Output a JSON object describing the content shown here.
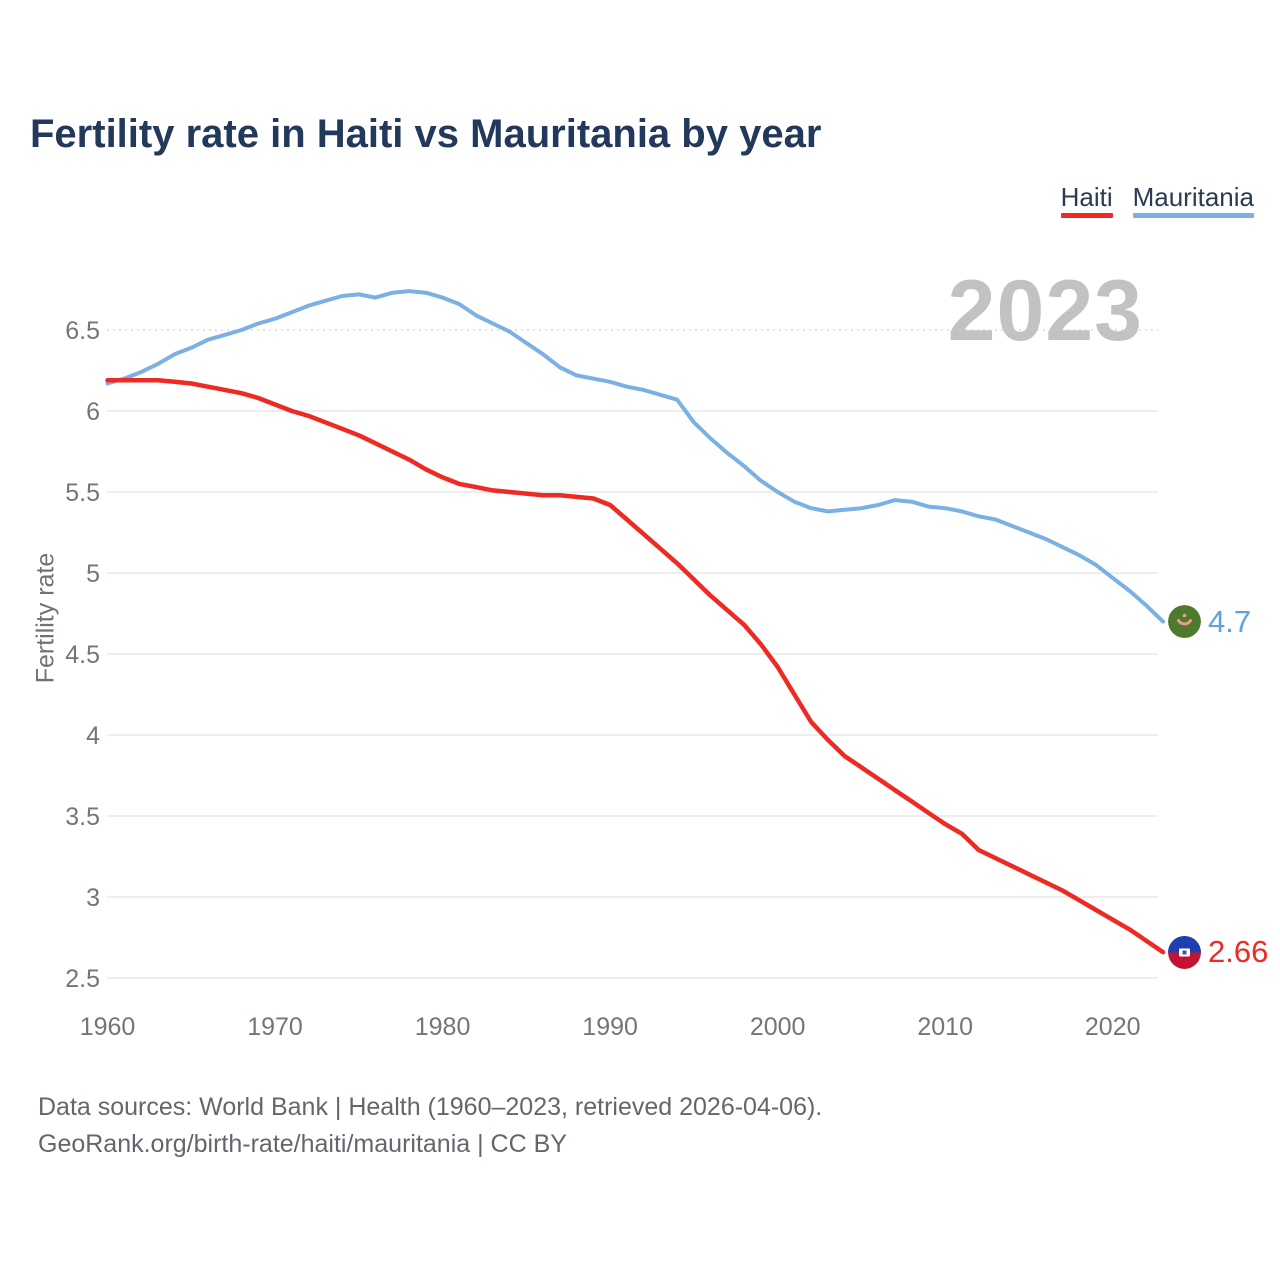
{
  "page": {
    "title": "Fertility rate in Haiti vs Mauritania by year",
    "watermark": "2023",
    "footer_line1": "Data sources: World Bank | Health (1960–2023, retrieved 2026-04-06).",
    "footer_line2": "GeoRank.org/birth-rate/haiti/mauritania | CC BY"
  },
  "legend": [
    {
      "label": "Haiti",
      "color": "#ee2a24"
    },
    {
      "label": "Mauritania",
      "color": "#7ab1e2"
    }
  ],
  "chart_data": {
    "type": "line",
    "title": "Fertility rate in Haiti vs Mauritania by year",
    "xlabel": "",
    "ylabel": "Fertility rate",
    "x_range": [
      1960,
      2023
    ],
    "x_ticks": [
      "1960",
      "1970",
      "1980",
      "1990",
      "2000",
      "2010",
      "2020"
    ],
    "x_tick_years": [
      1960,
      1970,
      1980,
      1990,
      2000,
      2010,
      2020
    ],
    "y_ticks": [
      "6.5",
      "6",
      "5.5",
      "5",
      "4.5",
      "4",
      "3.5",
      "3",
      "2.5"
    ],
    "y_tick_values": [
      6.5,
      6.0,
      5.5,
      5.0,
      4.5,
      4.0,
      3.5,
      3.0,
      2.5
    ],
    "ylim": [
      2.5,
      6.5
    ],
    "grid": true,
    "legend_position": "top-right",
    "year_annotation": "2023",
    "series": [
      {
        "name": "Haiti",
        "color": "#ee2a24",
        "end_label": "2.66",
        "end_value": 2.66,
        "values": [
          6.19,
          6.19,
          6.19,
          6.19,
          6.18,
          6.17,
          6.15,
          6.13,
          6.11,
          6.08,
          6.04,
          6.0,
          5.97,
          5.93,
          5.89,
          5.85,
          5.8,
          5.75,
          5.7,
          5.64,
          5.59,
          5.55,
          5.53,
          5.51,
          5.5,
          5.49,
          5.48,
          5.48,
          5.47,
          5.46,
          5.42,
          5.33,
          5.24,
          5.15,
          5.06,
          4.96,
          4.86,
          4.77,
          4.68,
          4.56,
          4.42,
          4.25,
          4.08,
          3.97,
          3.87,
          3.8,
          3.73,
          3.66,
          3.59,
          3.52,
          3.45,
          3.39,
          3.29,
          3.24,
          3.19,
          3.14,
          3.09,
          3.04,
          2.98,
          2.92,
          2.86,
          2.8,
          2.73,
          2.66
        ]
      },
      {
        "name": "Mauritania",
        "color": "#7ab1e2",
        "end_label": "4.7",
        "end_value": 4.7,
        "values": [
          6.17,
          6.2,
          6.24,
          6.29,
          6.35,
          6.39,
          6.44,
          6.47,
          6.5,
          6.54,
          6.57,
          6.61,
          6.65,
          6.68,
          6.71,
          6.72,
          6.7,
          6.73,
          6.74,
          6.73,
          6.7,
          6.66,
          6.59,
          6.54,
          6.49,
          6.42,
          6.35,
          6.27,
          6.22,
          6.2,
          6.18,
          6.15,
          6.13,
          6.1,
          6.07,
          5.93,
          5.83,
          5.74,
          5.66,
          5.57,
          5.5,
          5.44,
          5.4,
          5.38,
          5.39,
          5.4,
          5.42,
          5.45,
          5.44,
          5.41,
          5.4,
          5.38,
          5.35,
          5.33,
          5.29,
          5.25,
          5.21,
          5.16,
          5.11,
          5.05,
          4.97,
          4.89,
          4.8,
          4.7
        ]
      }
    ]
  }
}
